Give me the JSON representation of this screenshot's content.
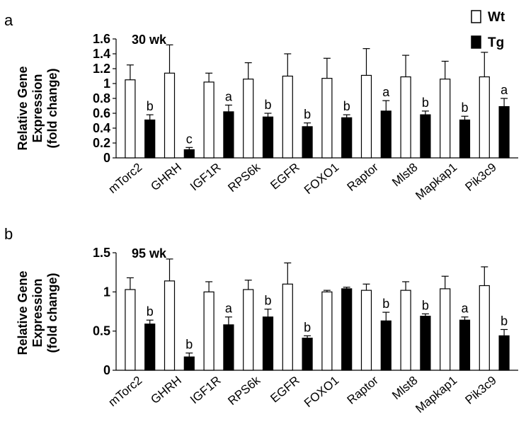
{
  "legend": {
    "position": "top-right",
    "items": [
      {
        "label": "Wt",
        "color": "#ffffff"
      },
      {
        "label": "Tg",
        "color": "#000000"
      }
    ]
  },
  "chart_data": [
    {
      "type": "bar",
      "panel": "a",
      "title": "30 wk",
      "ylabel": [
        "Relative Gene",
        "Expression",
        "(fold change)"
      ],
      "ylim": [
        0,
        1.6
      ],
      "yticks": [
        "0",
        "0.2",
        "0.4",
        "0.6",
        "0.8",
        "1",
        "1.2",
        "1.4",
        "1.6"
      ],
      "categories": [
        "mTorc2",
        "GHRH",
        "IGF1R",
        "RPS6k",
        "EGFR",
        "FOXO1",
        "Raptor",
        "Mlst8",
        "Mapkap1",
        "Pik3c9"
      ],
      "series": [
        {
          "name": "Wt",
          "color": "#ffffff",
          "values": [
            1.05,
            0,
            1.14,
            0,
            1.02,
            0,
            1.06,
            0,
            1.1,
            0
          ],
          "errors": [
            0.2,
            0,
            0.38,
            0,
            0.12,
            0,
            0.22,
            0,
            0.3,
            0
          ]
        },
        {
          "name": "Tg",
          "color": "#000000",
          "values": [
            0,
            0.51,
            0,
            0.11,
            0,
            0.62,
            0,
            0.55,
            0,
            0.42
          ],
          "errors": [
            0,
            0.07,
            0,
            0.03,
            0,
            0.09,
            0,
            0.05,
            0,
            0.05
          ]
        }
      ],
      "bars": [
        {
          "group": "mTorc2",
          "series": "Wt",
          "value": 1.05,
          "error": 0.2,
          "label": ""
        },
        {
          "group": "mTorc2",
          "series": "Tg",
          "value": 0.51,
          "error": 0.07,
          "label": "b"
        },
        {
          "group": "GHRH",
          "series": "Wt",
          "value": 1.14,
          "error": 0.38,
          "label": ""
        },
        {
          "group": "GHRH",
          "series": "Tg",
          "value": 0.11,
          "error": 0.03,
          "label": "c"
        },
        {
          "group": "IGF1R",
          "series": "Wt",
          "value": 1.02,
          "error": 0.12,
          "label": ""
        },
        {
          "group": "IGF1R",
          "series": "Tg",
          "value": 0.62,
          "error": 0.09,
          "label": "a"
        },
        {
          "group": "RPS6k",
          "series": "Wt",
          "value": 1.06,
          "error": 0.22,
          "label": ""
        },
        {
          "group": "RPS6k",
          "series": "Tg",
          "value": 0.55,
          "error": 0.05,
          "label": "b"
        },
        {
          "group": "EGFR",
          "series": "Wt",
          "value": 1.1,
          "error": 0.3,
          "label": ""
        },
        {
          "group": "EGFR",
          "series": "Tg",
          "value": 0.42,
          "error": 0.05,
          "label": "b"
        },
        {
          "group": "FOXO1",
          "series": "Wt",
          "value": 1.07,
          "error": 0.27,
          "label": ""
        },
        {
          "group": "FOXO1",
          "series": "Tg",
          "value": 0.54,
          "error": 0.04,
          "label": "b"
        },
        {
          "group": "Raptor",
          "series": "Wt",
          "value": 1.11,
          "error": 0.36,
          "label": ""
        },
        {
          "group": "Raptor",
          "series": "Tg",
          "value": 0.63,
          "error": 0.14,
          "label": "a"
        },
        {
          "group": "Mlst8",
          "series": "Wt",
          "value": 1.09,
          "error": 0.29,
          "label": ""
        },
        {
          "group": "Mlst8",
          "series": "Tg",
          "value": 0.58,
          "error": 0.05,
          "label": "b"
        },
        {
          "group": "Mapkap1",
          "series": "Wt",
          "value": 1.06,
          "error": 0.24,
          "label": ""
        },
        {
          "group": "Mapkap1",
          "series": "Tg",
          "value": 0.51,
          "error": 0.05,
          "label": "b"
        },
        {
          "group": "Pik3c9",
          "series": "Wt",
          "value": 1.09,
          "error": 0.33,
          "label": ""
        },
        {
          "group": "Pik3c9",
          "series": "Tg",
          "value": 0.69,
          "error": 0.11,
          "label": "a"
        }
      ]
    },
    {
      "type": "bar",
      "panel": "b",
      "title": "95 wk",
      "ylabel": [
        "Relative Gene",
        "Expression",
        "(fold change)"
      ],
      "ylim": [
        0,
        1.5
      ],
      "yticks": [
        "0",
        "0.5",
        "1",
        "1.5"
      ],
      "categories": [
        "mTorc2",
        "GHRH",
        "IGF1R",
        "RPS6k",
        "EGFR",
        "FOXO1",
        "Raptor",
        "Mlst8",
        "Mapkap1",
        "Pik3c9"
      ],
      "series": [
        {
          "name": "Wt",
          "color": "#ffffff",
          "values": [
            1.03,
            0,
            1.14,
            0,
            1.0,
            0,
            1.03,
            0,
            1.1,
            0
          ],
          "errors": [
            0.15,
            0,
            0.28,
            0,
            0.13,
            0,
            0.12,
            0,
            0.27,
            0
          ]
        },
        {
          "name": "Tg",
          "color": "#000000",
          "values": [
            0,
            0.59,
            0,
            0.17,
            0,
            0.58,
            0,
            0.68,
            0,
            0.41
          ],
          "errors": [
            0,
            0.05,
            0,
            0.05,
            0,
            0.1,
            0,
            0.1,
            0,
            0.03
          ]
        }
      ],
      "bars": [
        {
          "group": "mTorc2",
          "series": "Wt",
          "value": 1.03,
          "error": 0.15,
          "label": ""
        },
        {
          "group": "mTorc2",
          "series": "Tg",
          "value": 0.59,
          "error": 0.05,
          "label": "b"
        },
        {
          "group": "GHRH",
          "series": "Wt",
          "value": 1.14,
          "error": 0.28,
          "label": ""
        },
        {
          "group": "GHRH",
          "series": "Tg",
          "value": 0.17,
          "error": 0.05,
          "label": "b"
        },
        {
          "group": "IGF1R",
          "series": "Wt",
          "value": 1.0,
          "error": 0.13,
          "label": ""
        },
        {
          "group": "IGF1R",
          "series": "Tg",
          "value": 0.58,
          "error": 0.1,
          "label": "a"
        },
        {
          "group": "RPS6k",
          "series": "Wt",
          "value": 1.03,
          "error": 0.12,
          "label": ""
        },
        {
          "group": "RPS6k",
          "series": "Tg",
          "value": 0.68,
          "error": 0.1,
          "label": "b"
        },
        {
          "group": "EGFR",
          "series": "Wt",
          "value": 1.1,
          "error": 0.27,
          "label": ""
        },
        {
          "group": "EGFR",
          "series": "Tg",
          "value": 0.41,
          "error": 0.03,
          "label": "b"
        },
        {
          "group": "FOXO1",
          "series": "Wt",
          "value": 1.0,
          "error": 0.02,
          "label": ""
        },
        {
          "group": "FOXO1",
          "series": "Tg",
          "value": 1.04,
          "error": 0.02,
          "label": ""
        },
        {
          "group": "Raptor",
          "series": "Wt",
          "value": 1.02,
          "error": 0.08,
          "label": ""
        },
        {
          "group": "Raptor",
          "series": "Tg",
          "value": 0.63,
          "error": 0.11,
          "label": "b"
        },
        {
          "group": "Mlst8",
          "series": "Wt",
          "value": 1.02,
          "error": 0.11,
          "label": ""
        },
        {
          "group": "Mlst8",
          "series": "Tg",
          "value": 0.69,
          "error": 0.03,
          "label": "b"
        },
        {
          "group": "Mapkap1",
          "series": "Wt",
          "value": 1.04,
          "error": 0.16,
          "label": ""
        },
        {
          "group": "Mapkap1",
          "series": "Tg",
          "value": 0.64,
          "error": 0.04,
          "label": "a"
        },
        {
          "group": "Pik3c9",
          "series": "Wt",
          "value": 1.08,
          "error": 0.24,
          "label": ""
        },
        {
          "group": "Pik3c9",
          "series": "Tg",
          "value": 0.44,
          "error": 0.08,
          "label": "b"
        }
      ]
    }
  ]
}
